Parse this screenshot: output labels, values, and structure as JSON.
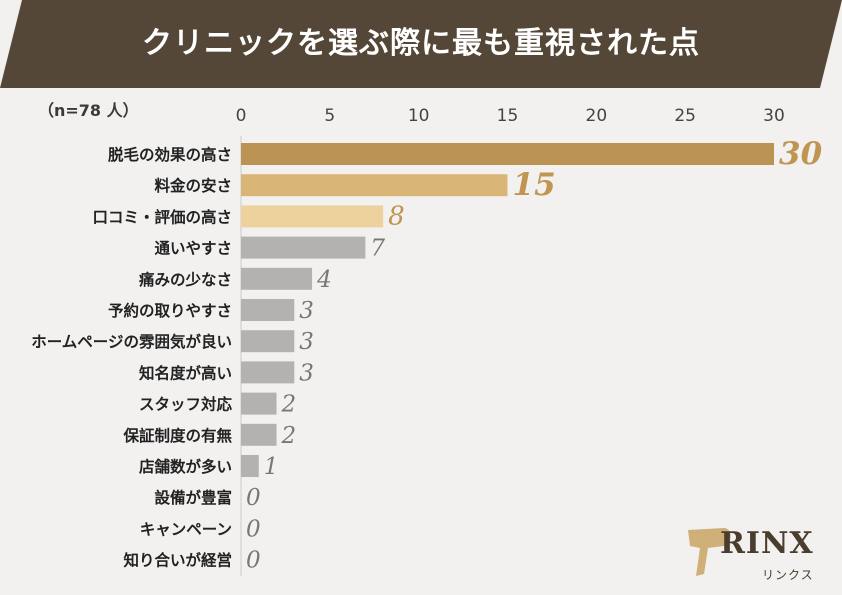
{
  "title": "クリニックを選ぶ際に最も重視された点",
  "sample_note": "（n=78 人）",
  "logo": {
    "name": "RINX",
    "sub": "リンクス"
  },
  "colors": {
    "banner": "#544737",
    "top1": "#bb9355",
    "top2": "#d9b678",
    "top3": "#edd29e",
    "other": "#b3b2b1",
    "label_top": "#c09552",
    "label_other": "#777777"
  },
  "chart_data": {
    "type": "bar",
    "orientation": "horizontal",
    "title": "クリニックを選ぶ際に最も重視された点",
    "categories": [
      "脱毛の効果の高さ",
      "料金の安さ",
      "口コミ・評価の高さ",
      "通いやすさ",
      "痛みの少なさ",
      "予約の取りやすさ",
      "ホームページの雰囲気が良い",
      "知名度が高い",
      "スタッフ対応",
      "保証制度の有無",
      "店舗数が多い",
      "設備が豊富",
      "キャンペーン",
      "知り合いが経営"
    ],
    "values": [
      30,
      15,
      8,
      7,
      4,
      3,
      3,
      3,
      2,
      2,
      1,
      0,
      0,
      0
    ],
    "xlim": [
      0,
      30
    ],
    "xticks": [
      0,
      5,
      10,
      15,
      20,
      25,
      30
    ],
    "axis_position": "top",
    "grid": false,
    "legend": "none"
  }
}
